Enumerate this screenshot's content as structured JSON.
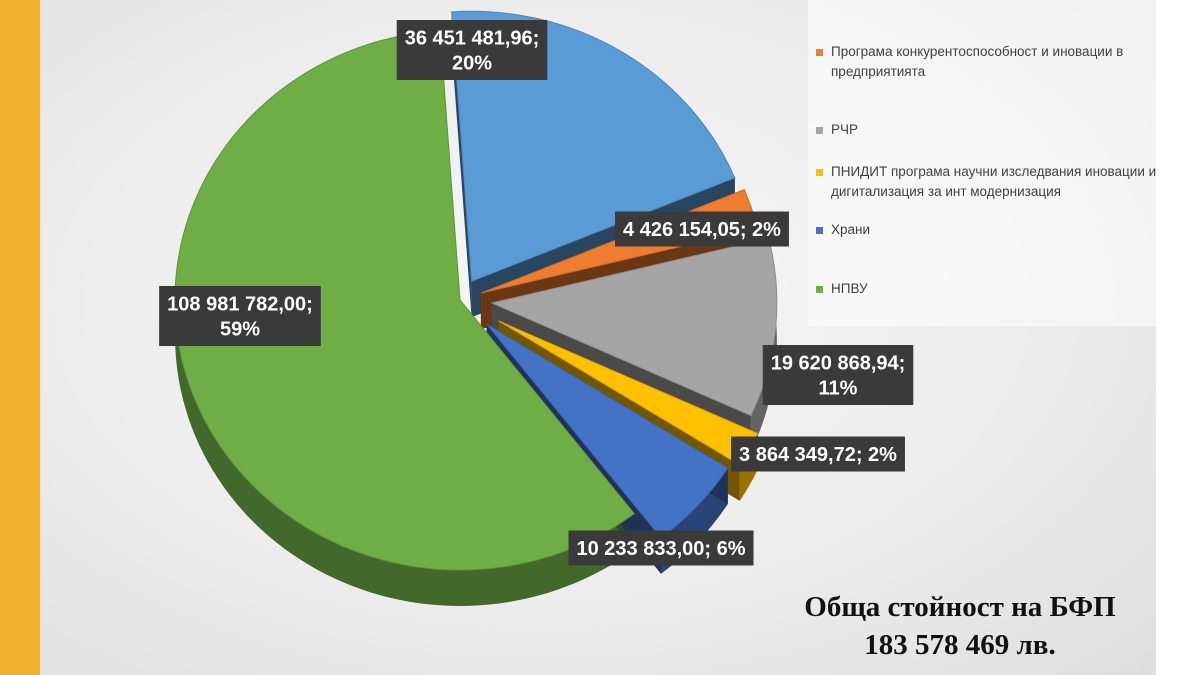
{
  "chart_data": {
    "type": "pie",
    "style": "3d-exploded",
    "slices": [
      {
        "name": "",
        "value": 36451481.96,
        "label": "36 451 481,96;\n20%",
        "color": "#5b9bd5"
      },
      {
        "name": "Програма конкурентоспособност и иновации в предприятията",
        "value": 4426154.05,
        "label": "4 426 154,05; 2%",
        "color": "#ed7d31"
      },
      {
        "name": "РЧР",
        "value": 19620868.94,
        "label": "19 620 868,94;\n11%",
        "color": "#a5a5a5"
      },
      {
        "name": "ПНИДИТ програма научни изследвания иновации и дигитализация за инт модернизация",
        "value": 3864349.72,
        "label": "3 864 349,72; 2%",
        "color": "#ffc000"
      },
      {
        "name": "Храни",
        "value": 10233833.0,
        "label": "10 233 833,00; 6%",
        "color": "#4472c4"
      },
      {
        "name": "НПВУ",
        "value": 108981782.0,
        "label": "108 981 782,00;\n59%",
        "color": "#70ad47"
      }
    ],
    "legend_position": "top-right",
    "legend": [
      {
        "name": "Програма конкурентоспособност и иновации в предприятията",
        "color": "#ed7d31"
      },
      {
        "name": "РЧР",
        "color": "#a5a5a5"
      },
      {
        "name": "ПНИДИТ програма научни изследвания иновации и дигитализация за инт модернизация",
        "color": "#ffc000"
      },
      {
        "name": "Храни",
        "color": "#4472c4"
      },
      {
        "name": "НПВУ",
        "color": "#70ad47"
      }
    ]
  },
  "total": {
    "line1": "Обща стойност на БФП",
    "line2": "183 578 469 лв."
  }
}
